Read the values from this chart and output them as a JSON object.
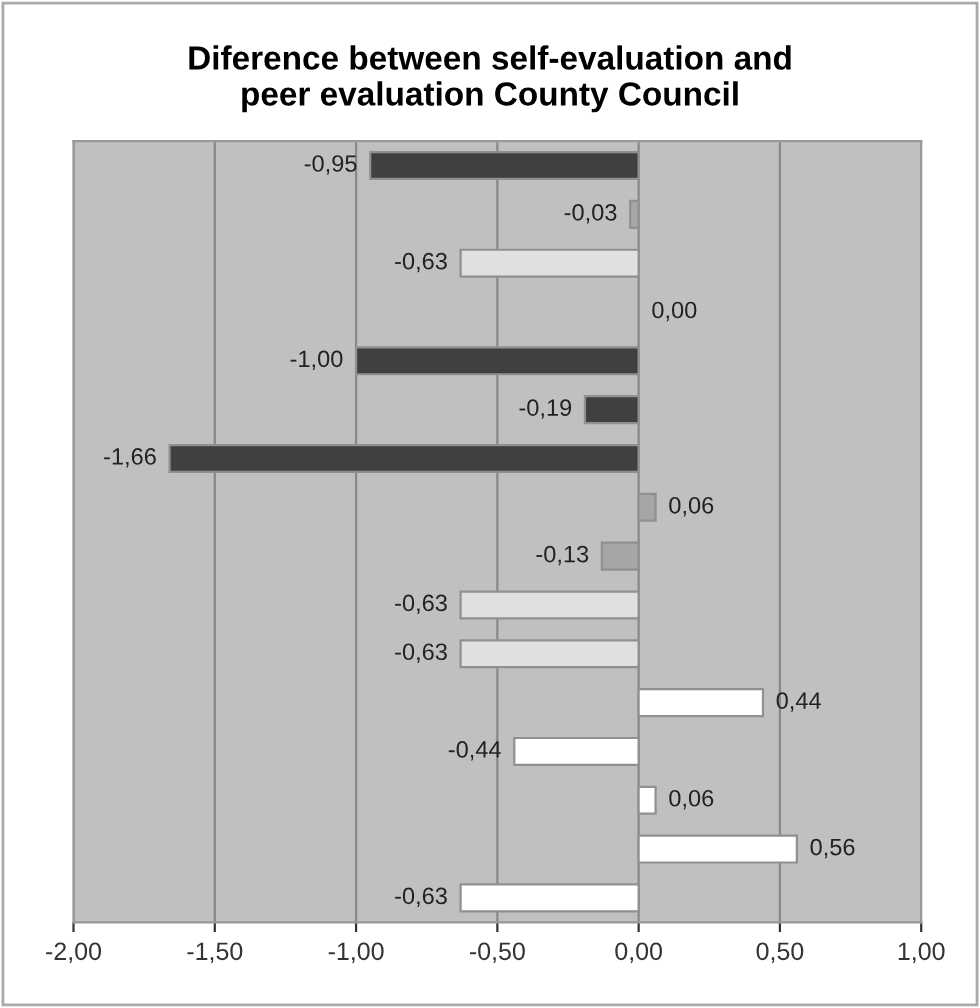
{
  "chart_data": {
    "type": "bar",
    "orientation": "horizontal",
    "title": "Diference between self-evaluation and\npeer evaluation County Council",
    "categories": [
      null,
      null,
      null,
      null,
      null,
      null,
      null,
      null,
      null,
      null,
      null,
      null,
      null,
      null,
      null,
      null
    ],
    "values": [
      -0.95,
      -0.03,
      -0.63,
      0.0,
      -1.0,
      -0.19,
      -1.66,
      0.06,
      -0.13,
      -0.63,
      -0.63,
      0.44,
      -0.44,
      0.06,
      0.56,
      -0.63
    ],
    "value_labels": [
      "-0,95",
      "-0,03",
      "-0,63",
      "0,00",
      "-1,00",
      "-0,19",
      "-1,66",
      "0,06",
      "-0,13",
      "-0,63",
      "-0,63",
      "0,44",
      "-0,44",
      "0,06",
      "0,56",
      "-0,63"
    ],
    "colors": [
      "#404040",
      "#a6a6a6",
      "#e0e0e0",
      "#e0e0e0",
      "#404040",
      "#404040",
      "#404040",
      "#a6a6a6",
      "#a6a6a6",
      "#e0e0e0",
      "#e0e0e0",
      "#ffffff",
      "#ffffff",
      "#ffffff",
      "#ffffff",
      "#ffffff"
    ],
    "xlim": [
      -2,
      1
    ],
    "xticks": [
      {
        "value": -2,
        "label": "-2,00"
      },
      {
        "value": -1.5,
        "label": "-1,50"
      },
      {
        "value": -1,
        "label": "-1,00"
      },
      {
        "value": -0.5,
        "label": "-0,50"
      },
      {
        "value": 0,
        "label": "0,00"
      },
      {
        "value": 0.5,
        "label": "0,50"
      },
      {
        "value": 1,
        "label": "1,00"
      }
    ],
    "grid": "x"
  }
}
